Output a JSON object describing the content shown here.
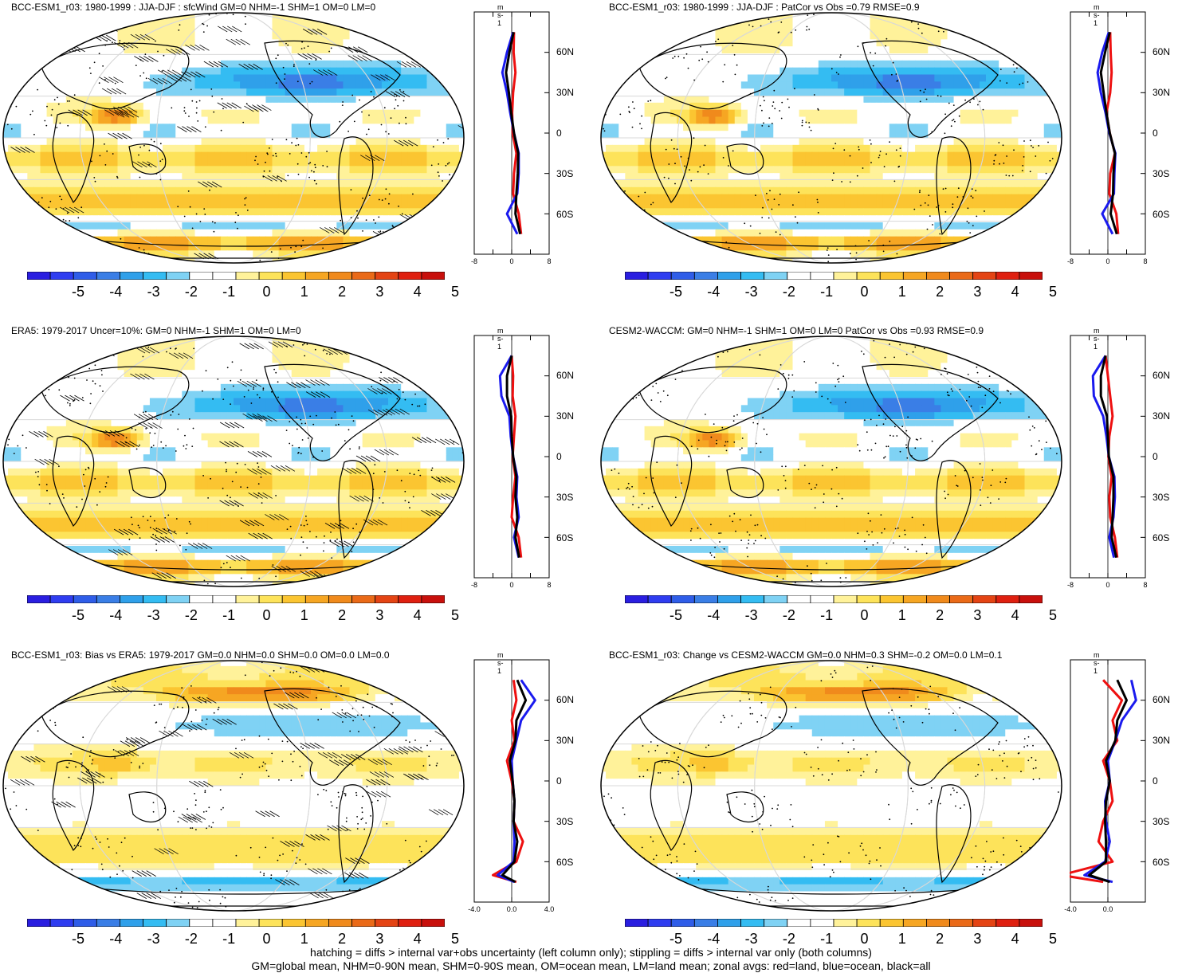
{
  "colorbar": {
    "labels": [
      "-5",
      "-4",
      "-3",
      "-2",
      "-1",
      "0",
      "1",
      "2",
      "3",
      "4",
      "5"
    ],
    "colors": [
      "#2a1ee0",
      "#2f3df0",
      "#2f5de8",
      "#3a7ee6",
      "#2fa0ea",
      "#34bcf2",
      "#7fd2f4",
      "#ffffff",
      "#ffffff",
      "#fff29a",
      "#fde35a",
      "#fbc531",
      "#f6a623",
      "#f08a1c",
      "#ea6a18",
      "#e44414",
      "#df2010",
      "#c8100c"
    ]
  },
  "panels": [
    {
      "title": "BCC-ESM1_r03: 1980-1999 : JJA-DJF : sfcWind GM=0 NHM=-1 SHM=1 OM=0 LM=0",
      "zonal_xticks": [
        "-8",
        "0",
        "8"
      ],
      "zonal_lat_labels": [
        "60N",
        "30N",
        "0",
        "30S",
        "60S"
      ],
      "units": "m s-1",
      "hatched": true
    },
    {
      "title": "BCC-ESM1_r03: 1980-1999 : JJA-DJF : PatCor vs Obs =0.79 RMSE=0.9",
      "zonal_xticks": [
        "-8",
        "0",
        "8"
      ],
      "zonal_lat_labels": [
        "60N",
        "30N",
        "0",
        "30S",
        "60S"
      ],
      "units": "m s-1",
      "hatched": false
    },
    {
      "title": "ERA5: 1979-2017 Uncer=10%: GM=0 NHM=-1 SHM=1 OM=0 LM=0",
      "zonal_xticks": [
        "-8",
        "0",
        "8"
      ],
      "zonal_lat_labels": [
        "60N",
        "30N",
        "0",
        "30S",
        "60S"
      ],
      "units": "m s-1",
      "hatched": true
    },
    {
      "title": "CESM2-WACCM: GM=0 NHM=-1 SHM=1 OM=0 LM=0 PatCor vs Obs =0.93 RMSE=0.9",
      "zonal_xticks": [
        "-8",
        "0",
        "8"
      ],
      "zonal_lat_labels": [
        "60N",
        "30N",
        "0",
        "30S",
        "60S"
      ],
      "units": "m s-1",
      "hatched": false
    },
    {
      "title": "BCC-ESM1_r03: Bias vs ERA5: 1979-2017 GM=0.0 NHM=0.0 SHM=0.0 OM=0.0 LM=0.0",
      "zonal_xticks": [
        "-4.0",
        "0.0",
        "4.0"
      ],
      "zonal_lat_labels": [
        "60N",
        "30N",
        "0",
        "30S",
        "60S"
      ],
      "units": "m s-1",
      "hatched": true
    },
    {
      "title": "BCC-ESM1_r03: Change vs CESM2-WACCM GM=0.0 NHM=0.3 SHM=-0.2 OM=0.0 LM=0.1",
      "zonal_xticks": [
        "-4.0",
        "0.0"
      ],
      "zonal_lat_labels": [
        "60N",
        "30N",
        "0",
        "30S",
        "60S"
      ],
      "units": "m s-1",
      "hatched": false
    }
  ],
  "footer": {
    "line1": "hatching = diffs > internal var+obs uncertainty (left column only); stippling = diffs > internal var only (both columns)",
    "line2": "GM=global mean, NHM=0-90N mean, SHM=0-90S mean, OM=ocean mean, LM=land mean; zonal avgs: red=land, blue=ocean, black=all"
  },
  "chart_data": [
    {
      "type": "heatmap",
      "title": "BCC-ESM1_r03: 1980-1999 : JJA-DJF : sfcWind GM=0 NHM=-1 SHM=1 OM=0 LM=0",
      "colorbar_range": [
        -5.5,
        5.5
      ],
      "zonal_xlim": [
        -8,
        8
      ],
      "zonal_lat": [
        75,
        60,
        45,
        30,
        15,
        0,
        -15,
        -30,
        -45,
        -60,
        -75
      ],
      "series": [
        {
          "name": "red=land",
          "values": [
            0.5,
            0.4,
            0.8,
            0.3,
            0.1,
            0.2,
            1.0,
            0.5,
            0.3,
            1.5,
            2.0
          ]
        },
        {
          "name": "blue=ocean",
          "values": [
            0.3,
            -1.0,
            -2.0,
            -1.0,
            -0.3,
            0.5,
            1.5,
            1.5,
            1.2,
            -1.0,
            1.2
          ]
        },
        {
          "name": "black=all",
          "values": [
            0.4,
            -0.5,
            -1.2,
            -0.6,
            -0.1,
            0.5,
            1.4,
            1.3,
            1.0,
            0.8,
            1.8
          ]
        }
      ]
    },
    {
      "type": "heatmap",
      "title": "BCC-ESM1_r03: 1980-1999 : JJA-DJF : PatCor vs Obs =0.79 RMSE=0.9",
      "colorbar_range": [
        -5.5,
        5.5
      ],
      "zonal_xlim": [
        -8,
        8
      ],
      "zonal_lat": [
        75,
        60,
        45,
        30,
        15,
        0,
        -15,
        -30,
        -45,
        -60,
        -75
      ],
      "series": [
        {
          "name": "red=land",
          "values": [
            0.5,
            0.6,
            0.8,
            0.5,
            -0.3,
            0.4,
            1.5,
            0.5,
            0.3,
            1.8,
            2.2
          ]
        },
        {
          "name": "blue=ocean",
          "values": [
            0.2,
            -1.2,
            -2.2,
            -1.5,
            -0.5,
            0.3,
            1.6,
            1.4,
            1.3,
            -1.2,
            1.0
          ]
        },
        {
          "name": "black=all",
          "values": [
            0.4,
            -0.6,
            -1.5,
            -0.9,
            -0.3,
            0.4,
            1.5,
            1.2,
            1.1,
            0.6,
            1.9
          ]
        }
      ]
    },
    {
      "type": "heatmap",
      "title": "ERA5: 1979-2017 Uncer=10%: GM=0 NHM=-1 SHM=1 OM=0 LM=0",
      "colorbar_range": [
        -5.5,
        5.5
      ],
      "zonal_xlim": [
        -8,
        8
      ],
      "zonal_lat": [
        75,
        60,
        45,
        30,
        15,
        0,
        -15,
        -30,
        -45,
        -60,
        -75
      ],
      "series": [
        {
          "name": "red=land",
          "values": [
            0.0,
            0.3,
            0.2,
            0.8,
            0.5,
            0.2,
            0.8,
            0.3,
            0.0,
            1.5,
            2.0
          ]
        },
        {
          "name": "blue=ocean",
          "values": [
            0.0,
            -2.5,
            -2.2,
            -0.5,
            -0.2,
            0.3,
            1.2,
            1.0,
            1.5,
            0.5,
            1.5
          ]
        },
        {
          "name": "black=all",
          "values": [
            0.0,
            -1.0,
            -1.0,
            -0.1,
            0.0,
            0.3,
            1.0,
            0.8,
            1.2,
            0.8,
            1.6
          ]
        }
      ]
    },
    {
      "type": "heatmap",
      "title": "CESM2-WACCM: GM=0 NHM=-1 SHM=1 OM=0 LM=0 PatCor vs Obs =0.93 RMSE=0.9",
      "colorbar_range": [
        -5.5,
        5.5
      ],
      "zonal_xlim": [
        -8,
        8
      ],
      "zonal_lat": [
        75,
        60,
        45,
        30,
        15,
        0,
        -15,
        -30,
        -45,
        -60,
        -75
      ],
      "series": [
        {
          "name": "red=land",
          "values": [
            -0.5,
            0.0,
            0.5,
            1.0,
            0.3,
            0.1,
            0.8,
            0.3,
            0.5,
            1.5,
            2.0
          ]
        },
        {
          "name": "blue=ocean",
          "values": [
            -0.5,
            -3.2,
            -3.0,
            -1.0,
            -0.3,
            0.2,
            1.4,
            1.5,
            1.2,
            0.3,
            1.3
          ]
        },
        {
          "name": "black=all",
          "values": [
            -0.5,
            -1.5,
            -1.5,
            -0.2,
            0.0,
            0.2,
            1.2,
            1.2,
            1.0,
            0.8,
            1.8
          ]
        }
      ]
    },
    {
      "type": "heatmap",
      "title": "BCC-ESM1_r03: Bias vs ERA5: 1979-2017 GM=0.0 NHM=0.0 SHM=0.0 OM=0.0 LM=0.0",
      "colorbar_range": [
        -5.5,
        5.5
      ],
      "zonal_xlim": [
        -4,
        4
      ],
      "zonal_lat": [
        75,
        60,
        45,
        30,
        15,
        0,
        -15,
        -30,
        -45,
        -60,
        -70,
        -75
      ],
      "series": [
        {
          "name": "red=land",
          "values": [
            0.2,
            0.5,
            0.0,
            0.3,
            -0.5,
            0.0,
            0.3,
            0.2,
            1.2,
            0.5,
            -2.0,
            0.5
          ]
        },
        {
          "name": "blue=ocean",
          "values": [
            1.0,
            2.5,
            1.0,
            0.5,
            0.0,
            0.1,
            0.3,
            0.2,
            0.3,
            0.2,
            -1.5,
            0.3
          ]
        },
        {
          "name": "black=all",
          "values": [
            0.6,
            1.5,
            0.5,
            0.4,
            -0.2,
            0.1,
            0.3,
            0.2,
            0.6,
            0.3,
            -1.0,
            0.4
          ]
        }
      ]
    },
    {
      "type": "heatmap",
      "title": "BCC-ESM1_r03: Change vs CESM2-WACCM GM=0.0 NHM=0.3 SHM=-0.2 OM=0.0 LM=0.1",
      "colorbar_range": [
        -5.5,
        5.5
      ],
      "zonal_xlim": [
        -4,
        4
      ],
      "zonal_lat": [
        75,
        60,
        45,
        30,
        15,
        0,
        -15,
        -30,
        -45,
        -60,
        -70,
        -75
      ],
      "series": [
        {
          "name": "red=land",
          "values": [
            -0.5,
            1.5,
            0.5,
            1.0,
            -0.5,
            0.2,
            0.5,
            -0.5,
            -1.0,
            0.5,
            -5.0,
            -0.5
          ]
        },
        {
          "name": "blue=ocean",
          "values": [
            2.5,
            3.0,
            1.5,
            0.8,
            0.0,
            0.2,
            -0.3,
            -0.2,
            0.2,
            -0.3,
            -2.5,
            0.5
          ]
        },
        {
          "name": "black=all",
          "values": [
            1.0,
            2.0,
            1.0,
            0.8,
            -0.2,
            0.2,
            -0.2,
            -0.3,
            -0.2,
            -0.2,
            -2.0,
            0.2
          ]
        }
      ]
    }
  ]
}
